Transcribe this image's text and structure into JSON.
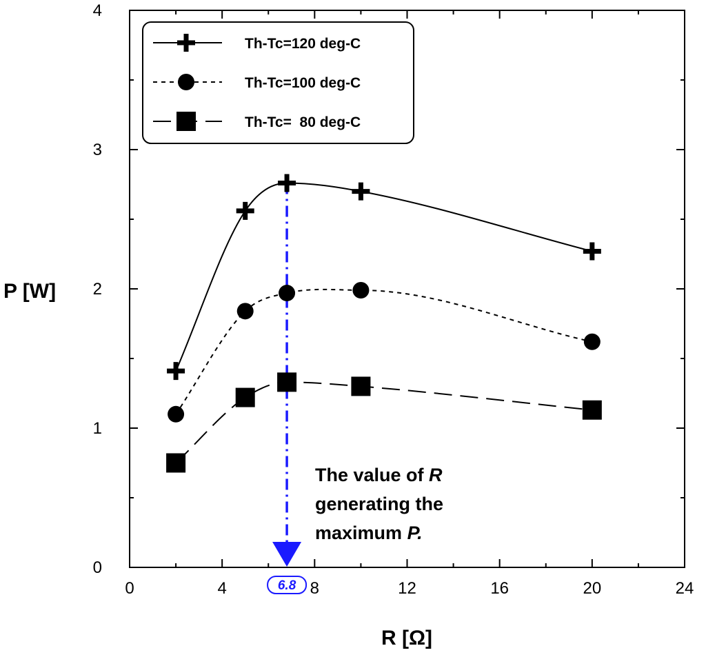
{
  "chart_data": {
    "type": "line",
    "xlabel": "R [Ω]",
    "ylabel": "P [W]",
    "xlim": [
      0,
      24
    ],
    "ylim": [
      0,
      4
    ],
    "x_ticks": [
      0,
      4,
      8,
      12,
      16,
      20,
      24
    ],
    "y_ticks": [
      0,
      1,
      2,
      3,
      4
    ],
    "grid": false,
    "legend_position": "top-left",
    "x": [
      2,
      5,
      6.8,
      10,
      20
    ],
    "series": [
      {
        "name": "Th-Tc=120 deg-C",
        "marker": "plus",
        "line": "solid",
        "values": [
          1.41,
          2.56,
          2.76,
          2.7,
          2.27
        ]
      },
      {
        "name": "Th-Tc=100 deg-C",
        "marker": "circle",
        "line": "dotted",
        "values": [
          1.1,
          1.84,
          1.97,
          1.99,
          1.62
        ]
      },
      {
        "name": "Th-Tc=  80 deg-C",
        "marker": "square",
        "line": "dashed",
        "values": [
          0.75,
          1.22,
          1.33,
          1.3,
          1.13
        ]
      }
    ],
    "annotation": {
      "x_value": 6.8,
      "marker_label": "6.8",
      "color": "#1a1aff",
      "text_lines": [
        [
          {
            "t": "The value of ",
            "i": false
          },
          {
            "t": "R",
            "i": true
          }
        ],
        [
          {
            "t": "generating the",
            "i": false
          }
        ],
        [
          {
            "t": "maximum ",
            "i": false
          },
          {
            "t": "P.",
            "i": true
          }
        ]
      ]
    }
  }
}
